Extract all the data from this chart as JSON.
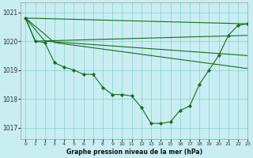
{
  "title": "Graphe pression niveau de la mer (hPa)",
  "bg_color": "#c8eef2",
  "grid_color": "#88cccc",
  "line_color": "#1a6b1a",
  "xlim": [
    -0.5,
    23
  ],
  "ylim": [
    1016.6,
    1021.35
  ],
  "yticks": [
    1017,
    1018,
    1019,
    1020,
    1021
  ],
  "xticks": [
    0,
    1,
    2,
    3,
    4,
    5,
    6,
    7,
    8,
    9,
    10,
    11,
    12,
    13,
    14,
    15,
    16,
    17,
    18,
    19,
    20,
    21,
    22,
    23
  ],
  "line_main_markers": [
    1020.8,
    1020.0,
    1019.95,
    1019.25,
    1019.1,
    1019.0,
    1018.85,
    1018.85,
    1018.4,
    1018.15,
    1018.15,
    1018.1,
    1017.7,
    1017.15,
    1017.15,
    1017.2,
    1017.6,
    1017.75,
    1018.5,
    1019.0,
    1019.5,
    1020.2,
    1020.55,
    1020.6
  ],
  "lines_straight": [
    {
      "x0": 0,
      "y0": 1020.8,
      "x1": 1,
      "y1": 1020.0,
      "x2": 23,
      "y2": 1020.6
    },
    {
      "x0": 0,
      "y0": 1020.8,
      "x1": 2,
      "y1": 1020.0,
      "x2": 23,
      "y2": 1020.2
    },
    {
      "x0": 0,
      "y0": 1020.8,
      "x1": 3,
      "y1": 1019.95,
      "x2": 23,
      "y2": 1019.05
    }
  ]
}
